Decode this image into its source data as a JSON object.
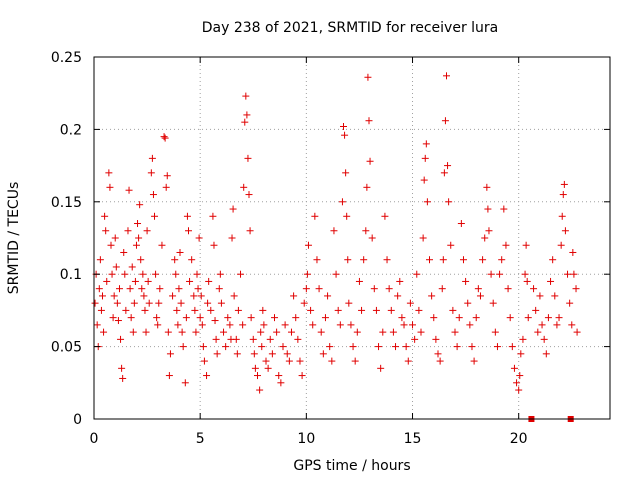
{
  "chart_data": {
    "type": "scatter",
    "title": "Day 238 of 2021, SRMTID for receiver lura",
    "xlabel": "GPS time / hours",
    "ylabel": "SRMTID / TECUs",
    "xlim": [
      0,
      24.3
    ],
    "ylim": [
      0,
      0.25
    ],
    "xticks": [
      "0",
      "5",
      "10",
      "15",
      "20"
    ],
    "yticks": [
      "0",
      "0.05",
      "0.1",
      "0.15",
      "0.2",
      "0.25"
    ],
    "grid": true,
    "marker": "+",
    "series_color": "#e00000",
    "series": [
      {
        "name": "SRMTID",
        "points": [
          [
            0.05,
            0.08
          ],
          [
            0.1,
            0.1
          ],
          [
            0.15,
            0.065
          ],
          [
            0.2,
            0.05
          ],
          [
            0.25,
            0.09
          ],
          [
            0.3,
            0.11
          ],
          [
            0.35,
            0.075
          ],
          [
            0.4,
            0.085
          ],
          [
            0.45,
            0.06
          ],
          [
            0.5,
            0.14
          ],
          [
            0.55,
            0.13
          ],
          [
            0.6,
            0.095
          ],
          [
            0.7,
            0.17
          ],
          [
            0.75,
            0.16
          ],
          [
            0.8,
            0.12
          ],
          [
            0.85,
            0.1
          ],
          [
            0.9,
            0.07
          ],
          [
            0.95,
            0.085
          ],
          [
            1.0,
            0.125
          ],
          [
            1.05,
            0.105
          ],
          [
            1.1,
            0.08
          ],
          [
            1.15,
            0.068
          ],
          [
            1.2,
            0.09
          ],
          [
            1.25,
            0.055
          ],
          [
            1.3,
            0.035
          ],
          [
            1.35,
            0.028
          ],
          [
            1.4,
            0.115
          ],
          [
            1.45,
            0.1
          ],
          [
            1.5,
            0.075
          ],
          [
            1.6,
            0.13
          ],
          [
            1.65,
            0.158
          ],
          [
            1.7,
            0.09
          ],
          [
            1.75,
            0.07
          ],
          [
            1.8,
            0.105
          ],
          [
            1.85,
            0.06
          ],
          [
            1.9,
            0.08
          ],
          [
            1.95,
            0.095
          ],
          [
            2.0,
            0.12
          ],
          [
            2.05,
            0.135
          ],
          [
            2.1,
            0.125
          ],
          [
            2.15,
            0.148
          ],
          [
            2.2,
            0.11
          ],
          [
            2.25,
            0.09
          ],
          [
            2.3,
            0.1
          ],
          [
            2.35,
            0.085
          ],
          [
            2.4,
            0.075
          ],
          [
            2.45,
            0.06
          ],
          [
            2.5,
            0.13
          ],
          [
            2.55,
            0.095
          ],
          [
            2.6,
            0.08
          ],
          [
            2.7,
            0.17
          ],
          [
            2.75,
            0.18
          ],
          [
            2.8,
            0.155
          ],
          [
            2.85,
            0.14
          ],
          [
            2.9,
            0.1
          ],
          [
            2.95,
            0.07
          ],
          [
            3.0,
            0.065
          ],
          [
            3.05,
            0.08
          ],
          [
            3.1,
            0.09
          ],
          [
            3.2,
            0.12
          ],
          [
            3.3,
            0.195
          ],
          [
            3.35,
            0.194
          ],
          [
            3.4,
            0.16
          ],
          [
            3.45,
            0.168
          ],
          [
            3.5,
            0.06
          ],
          [
            3.55,
            0.03
          ],
          [
            3.6,
            0.045
          ],
          [
            3.7,
            0.085
          ],
          [
            3.8,
            0.11
          ],
          [
            3.85,
            0.1
          ],
          [
            3.9,
            0.075
          ],
          [
            3.95,
            0.065
          ],
          [
            4.0,
            0.09
          ],
          [
            4.05,
            0.115
          ],
          [
            4.1,
            0.08
          ],
          [
            4.15,
            0.06
          ],
          [
            4.2,
            0.05
          ],
          [
            4.3,
            0.025
          ],
          [
            4.35,
            0.07
          ],
          [
            4.4,
            0.14
          ],
          [
            4.45,
            0.13
          ],
          [
            4.5,
            0.095
          ],
          [
            4.6,
            0.11
          ],
          [
            4.7,
            0.085
          ],
          [
            4.75,
            0.075
          ],
          [
            4.8,
            0.06
          ],
          [
            4.85,
            0.1
          ],
          [
            4.9,
            0.09
          ],
          [
            4.95,
            0.125
          ],
          [
            5.0,
            0.07
          ],
          [
            5.05,
            0.085
          ],
          [
            5.1,
            0.065
          ],
          [
            5.15,
            0.05
          ],
          [
            5.2,
            0.04
          ],
          [
            5.3,
            0.03
          ],
          [
            5.35,
            0.08
          ],
          [
            5.4,
            0.095
          ],
          [
            5.5,
            0.075
          ],
          [
            5.6,
            0.14
          ],
          [
            5.65,
            0.12
          ],
          [
            5.7,
            0.068
          ],
          [
            5.75,
            0.055
          ],
          [
            5.8,
            0.045
          ],
          [
            5.9,
            0.09
          ],
          [
            5.95,
            0.1
          ],
          [
            6.0,
            0.08
          ],
          [
            6.1,
            0.06
          ],
          [
            6.2,
            0.05
          ],
          [
            6.3,
            0.07
          ],
          [
            6.4,
            0.065
          ],
          [
            6.45,
            0.055
          ],
          [
            6.5,
            0.125
          ],
          [
            6.55,
            0.145
          ],
          [
            6.6,
            0.085
          ],
          [
            6.7,
            0.055
          ],
          [
            6.75,
            0.045
          ],
          [
            6.8,
            0.075
          ],
          [
            6.9,
            0.1
          ],
          [
            7.0,
            0.065
          ],
          [
            7.05,
            0.16
          ],
          [
            7.1,
            0.205
          ],
          [
            7.15,
            0.223
          ],
          [
            7.2,
            0.21
          ],
          [
            7.25,
            0.18
          ],
          [
            7.3,
            0.155
          ],
          [
            7.35,
            0.13
          ],
          [
            7.4,
            0.07
          ],
          [
            7.5,
            0.055
          ],
          [
            7.55,
            0.045
          ],
          [
            7.6,
            0.035
          ],
          [
            7.7,
            0.03
          ],
          [
            7.8,
            0.02
          ],
          [
            7.85,
            0.06
          ],
          [
            7.9,
            0.05
          ],
          [
            7.95,
            0.075
          ],
          [
            8.0,
            0.065
          ],
          [
            8.1,
            0.04
          ],
          [
            8.2,
            0.035
          ],
          [
            8.3,
            0.055
          ],
          [
            8.4,
            0.045
          ],
          [
            8.5,
            0.07
          ],
          [
            8.6,
            0.06
          ],
          [
            8.7,
            0.03
          ],
          [
            8.8,
            0.025
          ],
          [
            8.9,
            0.05
          ],
          [
            9.0,
            0.065
          ],
          [
            9.1,
            0.045
          ],
          [
            9.2,
            0.04
          ],
          [
            9.3,
            0.06
          ],
          [
            9.4,
            0.085
          ],
          [
            9.5,
            0.07
          ],
          [
            9.6,
            0.055
          ],
          [
            9.7,
            0.04
          ],
          [
            9.8,
            0.03
          ],
          [
            9.9,
            0.08
          ],
          [
            10.0,
            0.09
          ],
          [
            10.05,
            0.1
          ],
          [
            10.1,
            0.12
          ],
          [
            10.2,
            0.075
          ],
          [
            10.3,
            0.065
          ],
          [
            10.4,
            0.14
          ],
          [
            10.5,
            0.11
          ],
          [
            10.6,
            0.09
          ],
          [
            10.7,
            0.06
          ],
          [
            10.8,
            0.045
          ],
          [
            10.9,
            0.07
          ],
          [
            11.0,
            0.085
          ],
          [
            11.1,
            0.05
          ],
          [
            11.2,
            0.04
          ],
          [
            11.3,
            0.13
          ],
          [
            11.4,
            0.1
          ],
          [
            11.5,
            0.075
          ],
          [
            11.6,
            0.065
          ],
          [
            11.7,
            0.15
          ],
          [
            11.75,
            0.202
          ],
          [
            11.8,
            0.196
          ],
          [
            11.85,
            0.17
          ],
          [
            11.9,
            0.14
          ],
          [
            11.95,
            0.11
          ],
          [
            12.0,
            0.08
          ],
          [
            12.1,
            0.065
          ],
          [
            12.2,
            0.05
          ],
          [
            12.3,
            0.04
          ],
          [
            12.4,
            0.06
          ],
          [
            12.5,
            0.095
          ],
          [
            12.6,
            0.075
          ],
          [
            12.7,
            0.11
          ],
          [
            12.8,
            0.13
          ],
          [
            12.85,
            0.16
          ],
          [
            12.9,
            0.236
          ],
          [
            12.95,
            0.206
          ],
          [
            13.0,
            0.178
          ],
          [
            13.1,
            0.125
          ],
          [
            13.2,
            0.09
          ],
          [
            13.3,
            0.075
          ],
          [
            13.4,
            0.05
          ],
          [
            13.5,
            0.035
          ],
          [
            13.6,
            0.06
          ],
          [
            13.7,
            0.14
          ],
          [
            13.8,
            0.11
          ],
          [
            13.9,
            0.09
          ],
          [
            14.0,
            0.075
          ],
          [
            14.1,
            0.06
          ],
          [
            14.2,
            0.05
          ],
          [
            14.3,
            0.085
          ],
          [
            14.4,
            0.095
          ],
          [
            14.5,
            0.07
          ],
          [
            14.6,
            0.065
          ],
          [
            14.7,
            0.05
          ],
          [
            14.8,
            0.04
          ],
          [
            14.9,
            0.08
          ],
          [
            15.0,
            0.065
          ],
          [
            15.1,
            0.055
          ],
          [
            15.2,
            0.1
          ],
          [
            15.3,
            0.075
          ],
          [
            15.4,
            0.06
          ],
          [
            15.5,
            0.125
          ],
          [
            15.55,
            0.165
          ],
          [
            15.6,
            0.18
          ],
          [
            15.65,
            0.19
          ],
          [
            15.7,
            0.15
          ],
          [
            15.8,
            0.11
          ],
          [
            15.9,
            0.085
          ],
          [
            16.0,
            0.07
          ],
          [
            16.1,
            0.055
          ],
          [
            16.2,
            0.045
          ],
          [
            16.3,
            0.04
          ],
          [
            16.4,
            0.09
          ],
          [
            16.45,
            0.11
          ],
          [
            16.5,
            0.17
          ],
          [
            16.55,
            0.206
          ],
          [
            16.6,
            0.237
          ],
          [
            16.65,
            0.175
          ],
          [
            16.7,
            0.15
          ],
          [
            16.8,
            0.12
          ],
          [
            16.9,
            0.075
          ],
          [
            17.0,
            0.06
          ],
          [
            17.1,
            0.05
          ],
          [
            17.2,
            0.07
          ],
          [
            17.3,
            0.135
          ],
          [
            17.4,
            0.11
          ],
          [
            17.5,
            0.095
          ],
          [
            17.6,
            0.08
          ],
          [
            17.7,
            0.065
          ],
          [
            17.8,
            0.05
          ],
          [
            17.9,
            0.04
          ],
          [
            18.0,
            0.07
          ],
          [
            18.1,
            0.09
          ],
          [
            18.2,
            0.085
          ],
          [
            18.3,
            0.11
          ],
          [
            18.4,
            0.125
          ],
          [
            18.5,
            0.16
          ],
          [
            18.55,
            0.145
          ],
          [
            18.6,
            0.13
          ],
          [
            18.7,
            0.1
          ],
          [
            18.8,
            0.08
          ],
          [
            18.9,
            0.06
          ],
          [
            19.0,
            0.05
          ],
          [
            19.1,
            0.1
          ],
          [
            19.2,
            0.11
          ],
          [
            19.3,
            0.145
          ],
          [
            19.4,
            0.12
          ],
          [
            19.5,
            0.09
          ],
          [
            19.6,
            0.07
          ],
          [
            19.7,
            0.05
          ],
          [
            19.8,
            0.035
          ],
          [
            19.9,
            0.025
          ],
          [
            20.0,
            0.02
          ],
          [
            20.05,
            0.03
          ],
          [
            20.1,
            0.045
          ],
          [
            20.2,
            0.055
          ],
          [
            20.3,
            0.1
          ],
          [
            20.35,
            0.12
          ],
          [
            20.4,
            0.095
          ],
          [
            20.45,
            0.07
          ],
          [
            20.7,
            0.09
          ],
          [
            20.8,
            0.075
          ],
          [
            20.9,
            0.06
          ],
          [
            21.0,
            0.085
          ],
          [
            21.1,
            0.065
          ],
          [
            21.2,
            0.055
          ],
          [
            21.3,
            0.045
          ],
          [
            21.4,
            0.07
          ],
          [
            21.5,
            0.095
          ],
          [
            21.6,
            0.11
          ],
          [
            21.7,
            0.085
          ],
          [
            21.8,
            0.065
          ],
          [
            21.9,
            0.07
          ],
          [
            22.0,
            0.12
          ],
          [
            22.05,
            0.14
          ],
          [
            22.1,
            0.155
          ],
          [
            22.15,
            0.162
          ],
          [
            22.2,
            0.13
          ],
          [
            22.3,
            0.1
          ],
          [
            22.4,
            0.08
          ],
          [
            22.5,
            0.065
          ],
          [
            22.55,
            0.115
          ],
          [
            22.6,
            0.1
          ],
          [
            22.7,
            0.09
          ],
          [
            22.75,
            0.06
          ]
        ]
      }
    ],
    "axis_markers": {
      "type": "square",
      "x": [
        20.6,
        22.45
      ],
      "y": 0.0
    }
  }
}
